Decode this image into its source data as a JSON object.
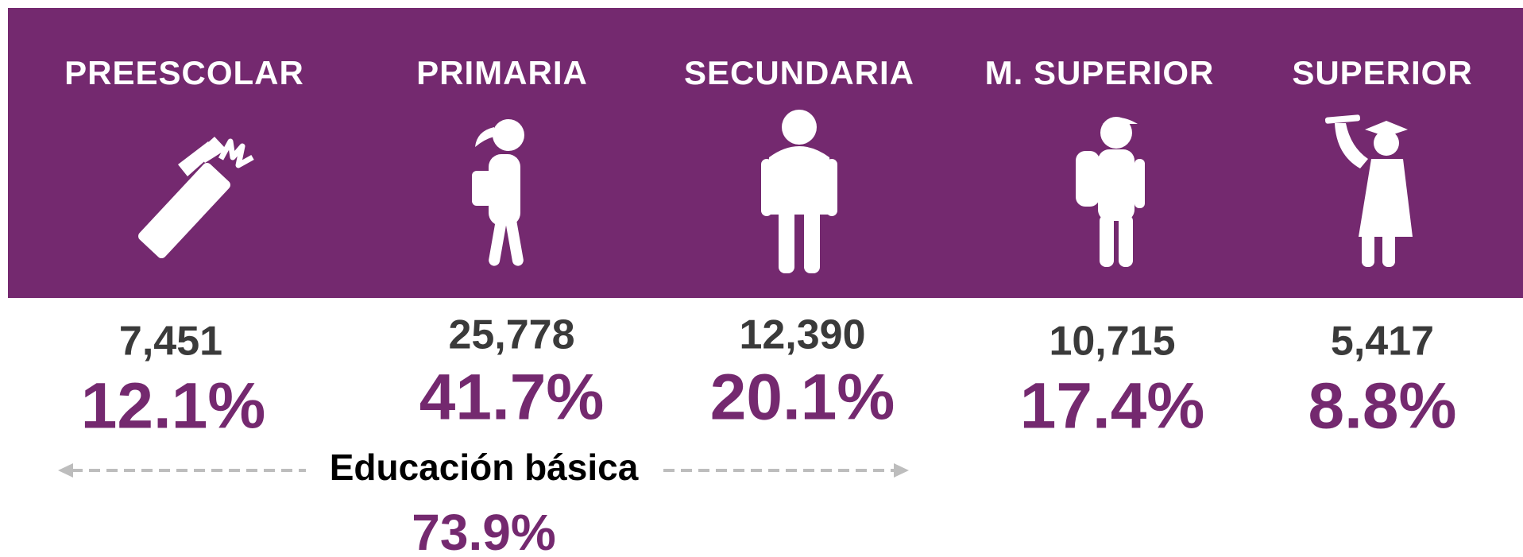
{
  "levels": [
    {
      "label": "PREESCOLAR",
      "count": "7,451",
      "percent": "12.1%"
    },
    {
      "label": "PRIMARIA",
      "count": "25,778",
      "percent": "41.7%"
    },
    {
      "label": "SECUNDARIA",
      "count": "12,390",
      "percent": "20.1%"
    },
    {
      "label": "M. SUPERIOR",
      "count": "10,715",
      "percent": "17.4%"
    },
    {
      "label": "SUPERIOR",
      "count": "5,417",
      "percent": "8.8%"
    }
  ],
  "basic": {
    "label": "Educación básica",
    "percent": "73.9%"
  }
}
